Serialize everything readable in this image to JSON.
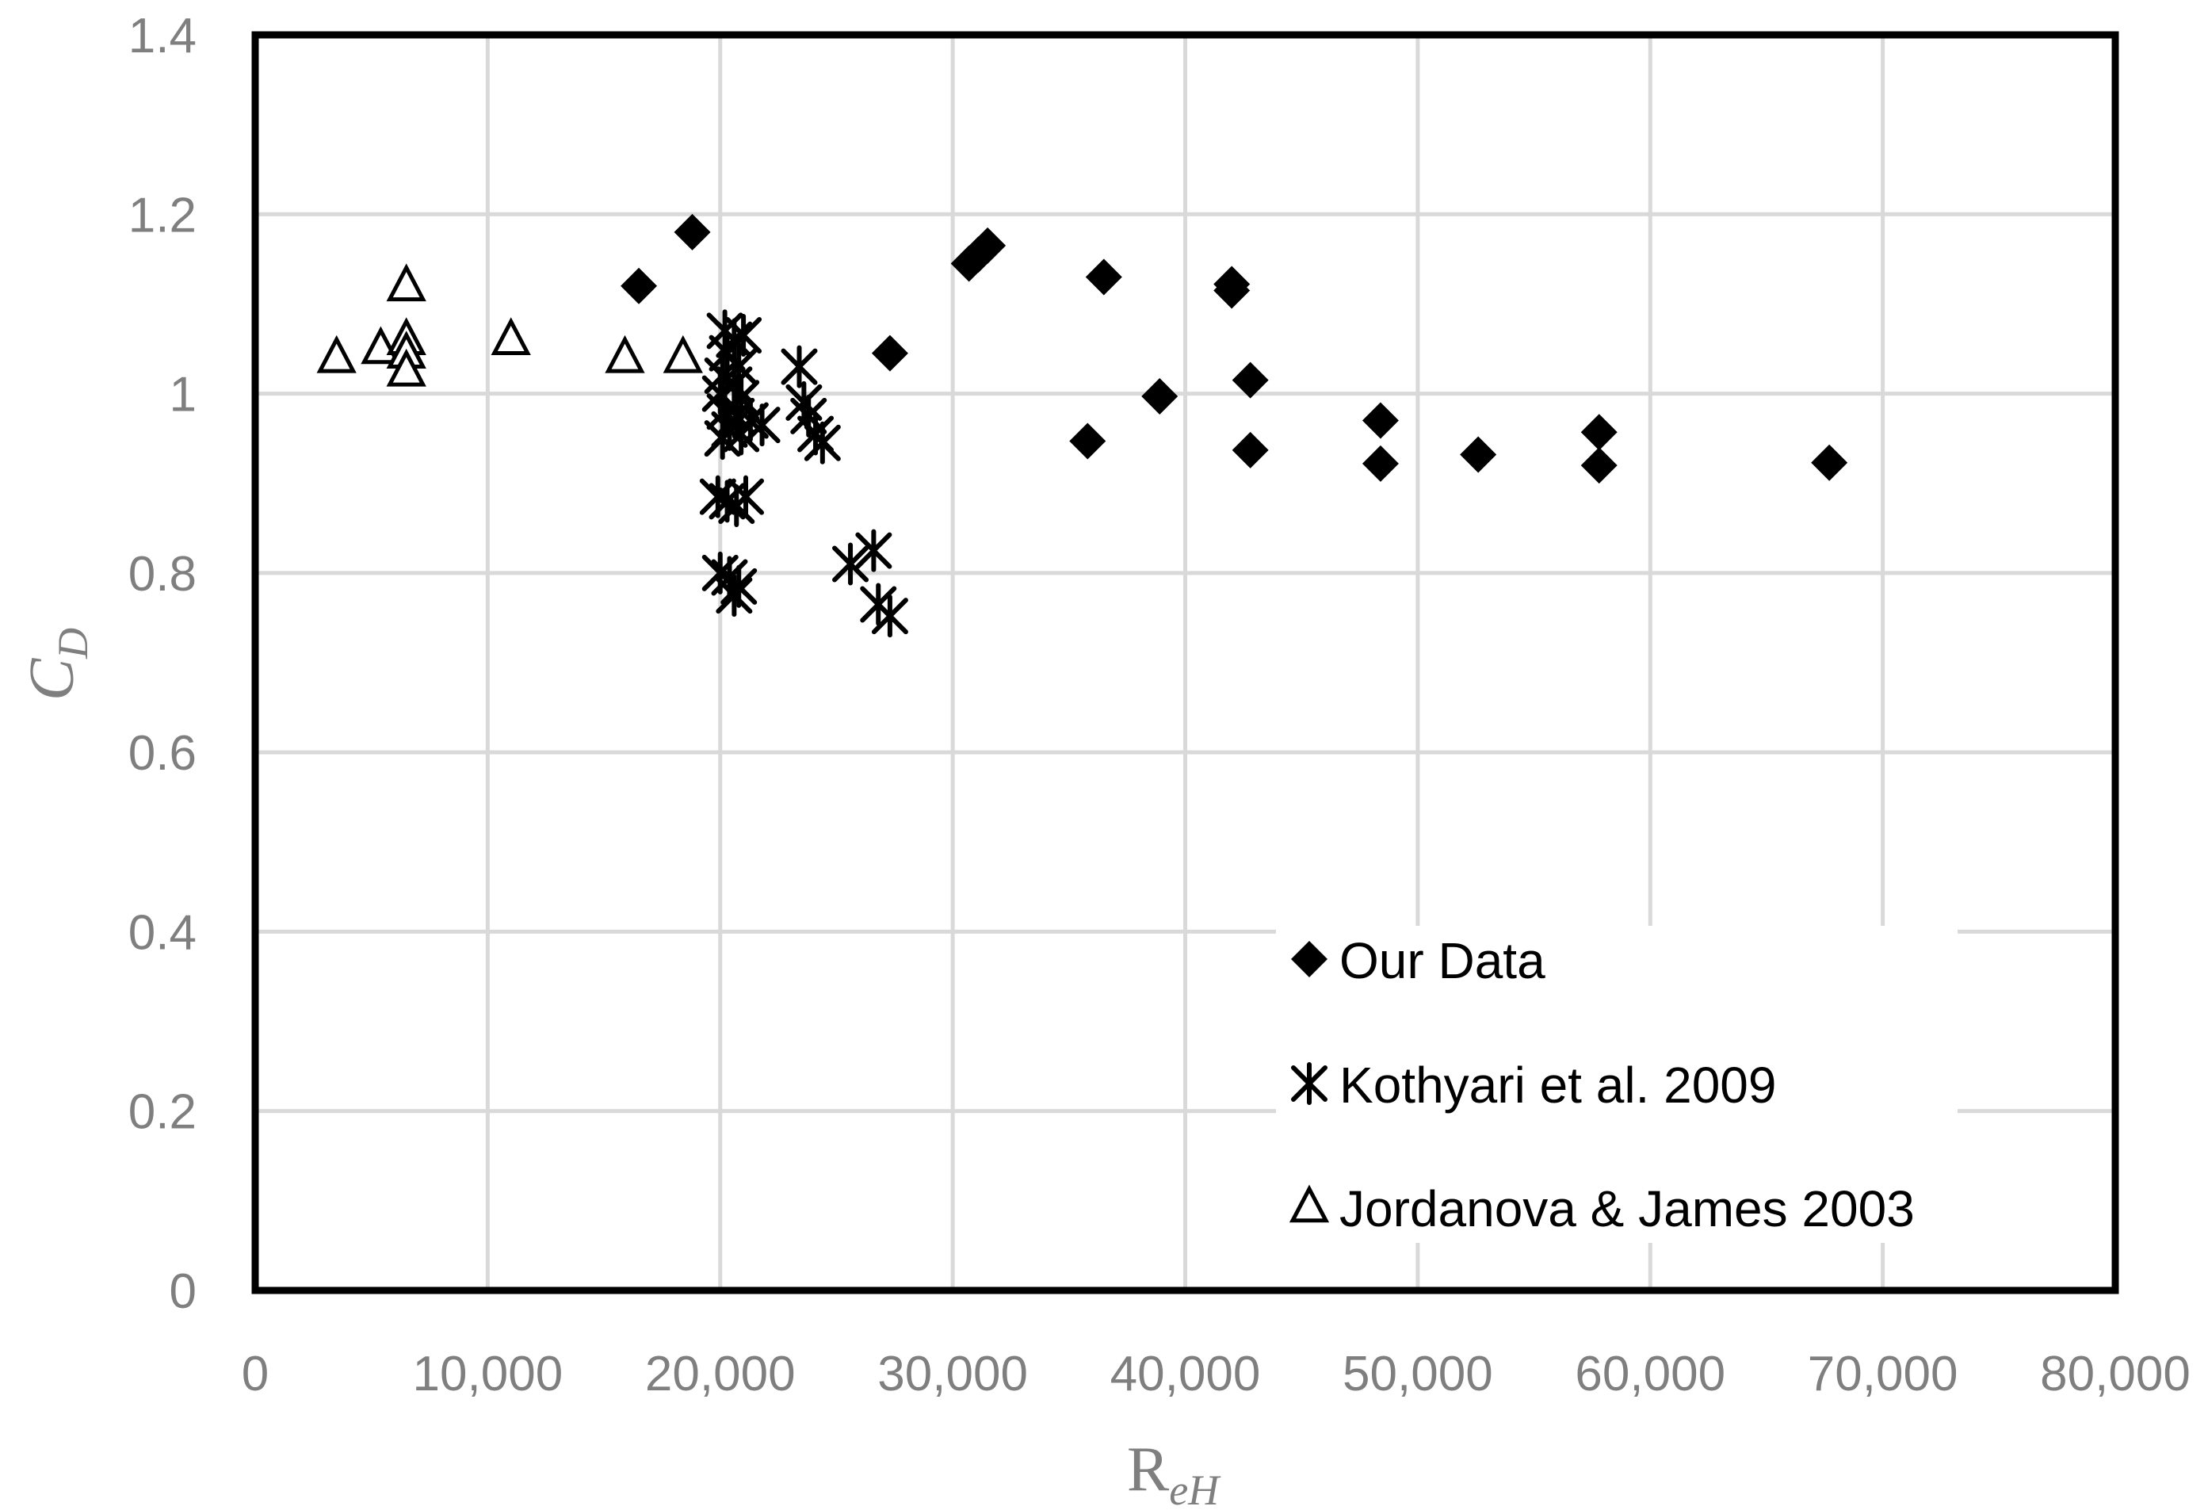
{
  "chart_data": {
    "type": "scatter",
    "title": "",
    "xlabel": {
      "main": "R",
      "sub": "eH"
    },
    "ylabel": {
      "main": "C",
      "sub": "D"
    },
    "xlim": [
      0,
      80000
    ],
    "ylim": [
      0,
      1.4
    ],
    "x_ticks": [
      {
        "value": 0,
        "label": "0"
      },
      {
        "value": 10000,
        "label": "10,000"
      },
      {
        "value": 20000,
        "label": "20,000"
      },
      {
        "value": 30000,
        "label": "30,000"
      },
      {
        "value": 40000,
        "label": "40,000"
      },
      {
        "value": 50000,
        "label": "50,000"
      },
      {
        "value": 60000,
        "label": "60,000"
      },
      {
        "value": 70000,
        "label": "70,000"
      },
      {
        "value": 80000,
        "label": "80,000"
      }
    ],
    "y_ticks": [
      {
        "value": 0,
        "label": "0"
      },
      {
        "value": 0.2,
        "label": "0.2"
      },
      {
        "value": 0.4,
        "label": "0.4"
      },
      {
        "value": 0.6,
        "label": "0.6"
      },
      {
        "value": 0.8,
        "label": "0.8"
      },
      {
        "value": 1.0,
        "label": "1"
      },
      {
        "value": 1.2,
        "label": "1.2"
      },
      {
        "value": 1.4,
        "label": "1.4"
      }
    ],
    "grid": true,
    "legend_position": "bottom-right",
    "series": [
      {
        "name": "Our Data",
        "marker": "diamond-filled",
        "color": "#000000",
        "points": [
          {
            "x": 16500,
            "y": 1.12
          },
          {
            "x": 18800,
            "y": 1.18
          },
          {
            "x": 27300,
            "y": 1.045
          },
          {
            "x": 30700,
            "y": 1.145
          },
          {
            "x": 31100,
            "y": 1.155
          },
          {
            "x": 31500,
            "y": 1.165
          },
          {
            "x": 36500,
            "y": 1.13
          },
          {
            "x": 35800,
            "y": 0.947
          },
          {
            "x": 38900,
            "y": 0.997
          },
          {
            "x": 42000,
            "y": 1.122
          },
          {
            "x": 42000,
            "y": 1.115
          },
          {
            "x": 42800,
            "y": 1.015
          },
          {
            "x": 42800,
            "y": 0.937
          },
          {
            "x": 48400,
            "y": 0.97
          },
          {
            "x": 48400,
            "y": 0.922
          },
          {
            "x": 52600,
            "y": 0.932
          },
          {
            "x": 57800,
            "y": 0.957
          },
          {
            "x": 57800,
            "y": 0.92
          },
          {
            "x": 67700,
            "y": 0.923
          }
        ]
      },
      {
        "name": "Kothyari et al. 2009",
        "marker": "asterisk",
        "color": "#000000",
        "points": [
          {
            "x": 20200,
            "y": 1.07
          },
          {
            "x": 20600,
            "y": 1.06
          },
          {
            "x": 21000,
            "y": 1.065
          },
          {
            "x": 20300,
            "y": 1.045
          },
          {
            "x": 20800,
            "y": 1.03
          },
          {
            "x": 20100,
            "y": 1.02
          },
          {
            "x": 20600,
            "y": 1.01
          },
          {
            "x": 20000,
            "y": 1.0
          },
          {
            "x": 20900,
            "y": 0.995
          },
          {
            "x": 20200,
            "y": 0.98
          },
          {
            "x": 20700,
            "y": 0.975
          },
          {
            "x": 21300,
            "y": 0.97
          },
          {
            "x": 21800,
            "y": 0.965
          },
          {
            "x": 20400,
            "y": 0.96
          },
          {
            "x": 20900,
            "y": 0.955
          },
          {
            "x": 20100,
            "y": 0.95
          },
          {
            "x": 23400,
            "y": 1.03
          },
          {
            "x": 23600,
            "y": 0.99
          },
          {
            "x": 23800,
            "y": 0.975
          },
          {
            "x": 24100,
            "y": 0.955
          },
          {
            "x": 24400,
            "y": 0.945
          },
          {
            "x": 19900,
            "y": 0.885
          },
          {
            "x": 20300,
            "y": 0.88
          },
          {
            "x": 20700,
            "y": 0.875
          },
          {
            "x": 21100,
            "y": 0.885
          },
          {
            "x": 20000,
            "y": 0.8
          },
          {
            "x": 20400,
            "y": 0.795
          },
          {
            "x": 20800,
            "y": 0.785
          },
          {
            "x": 20600,
            "y": 0.775
          },
          {
            "x": 25600,
            "y": 0.81
          },
          {
            "x": 26600,
            "y": 0.825
          },
          {
            "x": 26800,
            "y": 0.765
          },
          {
            "x": 27300,
            "y": 0.752
          }
        ]
      },
      {
        "name": "Jordanova & James 2003",
        "marker": "triangle-open",
        "color": "#000000",
        "points": [
          {
            "x": 3500,
            "y": 1.04
          },
          {
            "x": 5400,
            "y": 1.05
          },
          {
            "x": 6500,
            "y": 1.12
          },
          {
            "x": 6500,
            "y": 1.06
          },
          {
            "x": 6500,
            "y": 1.045
          },
          {
            "x": 6500,
            "y": 1.025
          },
          {
            "x": 11000,
            "y": 1.06
          },
          {
            "x": 15900,
            "y": 1.04
          },
          {
            "x": 18400,
            "y": 1.04
          }
        ]
      }
    ]
  }
}
